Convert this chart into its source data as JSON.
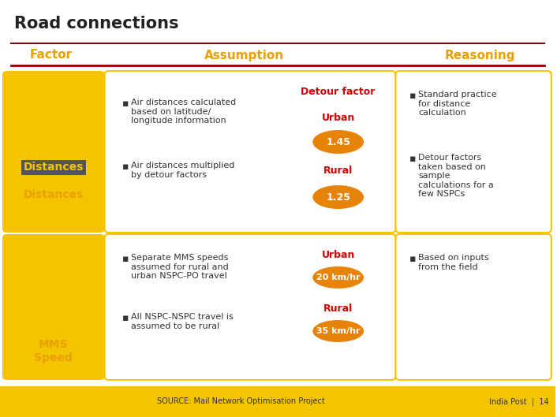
{
  "title": "Road connections",
  "bg_color": "#FFFFFF",
  "header_cols": [
    "Factor",
    "Assumption",
    "Reasoning"
  ],
  "header_color": "#E8A000",
  "header_line_color": "#8B0000",
  "section1_label": "Distances",
  "section2_label": "MMS\nSpeed",
  "section1_box_color": "#F5C400",
  "section2_box_color": "#F5C400",
  "assumption1_bullets": [
    "Air distances calculated\nbased on latitude/\nlongitude information",
    "Air distances multiplied\nby detour factors"
  ],
  "assumption2_bullets": [
    "Separate MMS speeds\nassumed for rural and\nurban NSPC-PO travel",
    "All NSPC-NSPC travel is\nassumed to be rural"
  ],
  "detour_label": "Detour factor",
  "detour_color": "#CC0000",
  "urban1_label": "Urban",
  "urban1_color": "#CC0000",
  "urban1_val": "1.45",
  "rural1_label": "Rural",
  "rural1_color": "#CC0000",
  "rural1_val": "1.25",
  "urban2_label": "Urban",
  "urban2_color": "#CC0000",
  "urban2_val": "20 km/hr",
  "rural2_label": "Rural",
  "rural2_color": "#CC0000",
  "rural2_val": "35 km/hr",
  "oval_color": "#E8830A",
  "oval_text_color": "#FFFFFF",
  "reasoning1_bullets": [
    "Standard practice\nfor distance\ncalculation",
    "Detour factors\ntaken based on\nsample\ncalculations for a\nfew NSPCs"
  ],
  "reasoning2_bullets": [
    "Based on inputs\nfrom the field"
  ],
  "footer_bg": "#F5C400",
  "footer_source": "SOURCE: Mail Network Optimisation Project",
  "footer_right": "India Post  |  14",
  "section_label_color": "#E8A000",
  "bullet_color": "#333333"
}
